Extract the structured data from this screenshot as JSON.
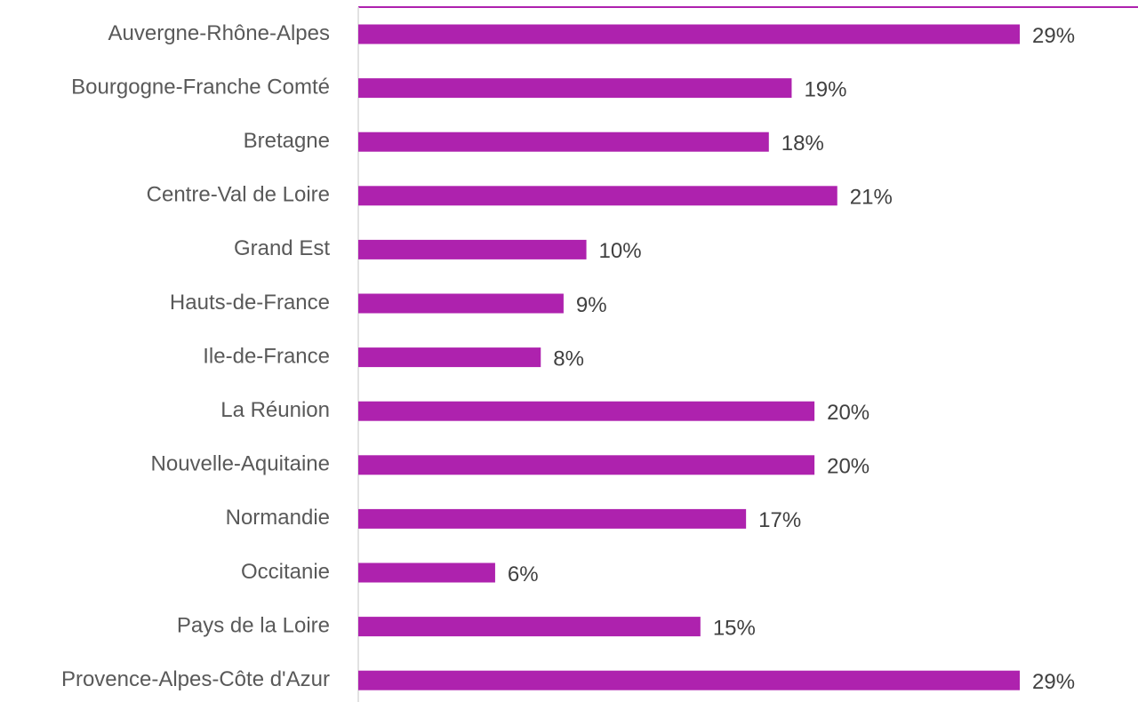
{
  "chart_data": {
    "type": "bar",
    "orientation": "horizontal",
    "color": "#ae22ae",
    "categories": [
      "Auvergne-Rhône-Alpes",
      "Bourgogne-Franche Comté",
      "Bretagne",
      "Centre-Val de Loire",
      "Grand Est",
      "Hauts-de-France",
      "Ile-de-France",
      "La Réunion",
      "Nouvelle-Aquitaine",
      "Normandie",
      "Occitanie",
      "Pays de la Loire",
      "Provence-Alpes-Côte d'Azur"
    ],
    "values": [
      29,
      19,
      18,
      21,
      10,
      9,
      8,
      20,
      20,
      17,
      6,
      15,
      29
    ],
    "value_labels": [
      "29%",
      "19%",
      "18%",
      "21%",
      "10%",
      "9%",
      "8%",
      "20%",
      "20%",
      "17%",
      "6%",
      "15%",
      "29%"
    ]
  }
}
